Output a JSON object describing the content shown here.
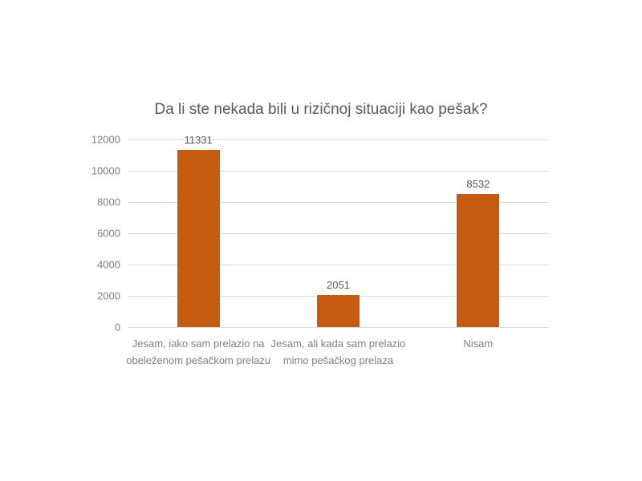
{
  "chart_data": {
    "type": "bar",
    "title": "Da li ste nekada bili u rizičnoj situaciji kao pešak?",
    "categories": [
      "Jesam, iako sam prelazio na obeleženom pešačkom prelazu",
      "Jesam, ali kada sam prelazio mimo pešačkog prelaza",
      "Nisam"
    ],
    "values": [
      11331,
      2051,
      8532
    ],
    "data_labels": [
      "11331",
      "2051",
      "8532"
    ],
    "xlabel": "",
    "ylabel": "",
    "ylim": [
      0,
      12000
    ],
    "ytick_step": 2000,
    "ytick_labels": [
      "0",
      "2000",
      "4000",
      "6000",
      "8000",
      "10000",
      "12000"
    ],
    "grid": "horizontal",
    "legend": "none",
    "colors": {
      "bar": "#c55a11",
      "gridline": "#d9d9d9",
      "axis_text": "#808080",
      "data_label_text": "#595959",
      "title_text": "#595959",
      "background": "#ffffff"
    }
  }
}
